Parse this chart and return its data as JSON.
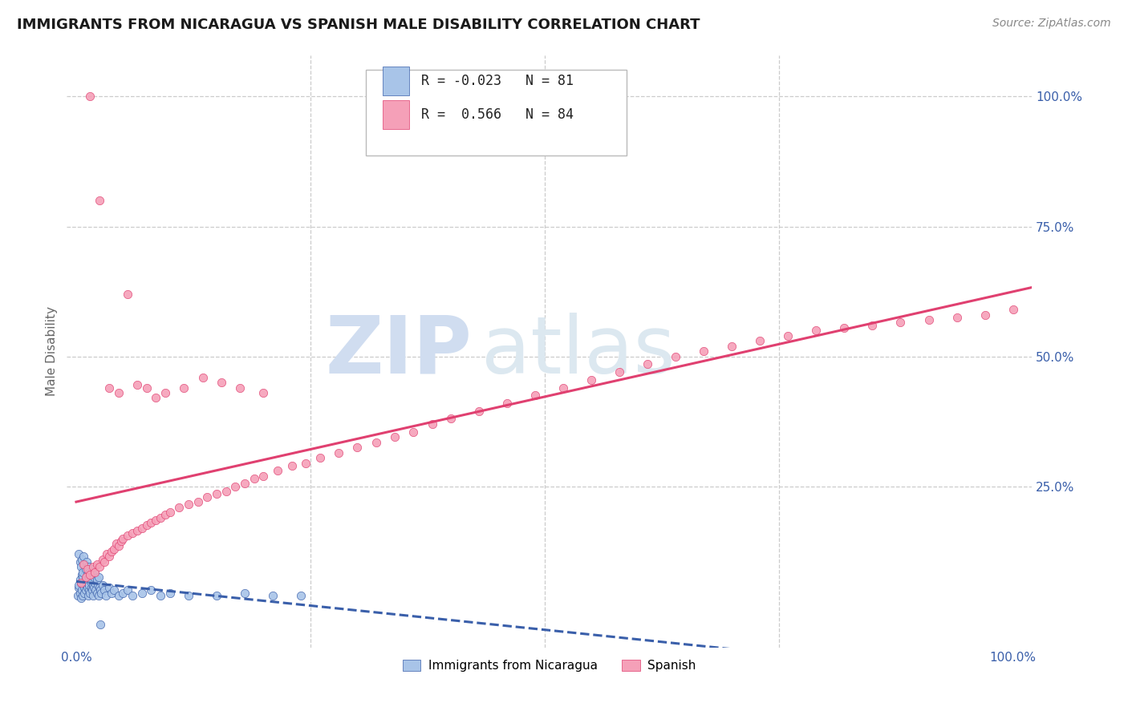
{
  "title": "IMMIGRANTS FROM NICARAGUA VS SPANISH MALE DISABILITY CORRELATION CHART",
  "source": "Source: ZipAtlas.com",
  "ylabel": "Male Disability",
  "legend_blue_r": "-0.023",
  "legend_blue_n": "81",
  "legend_pink_r": "0.566",
  "legend_pink_n": "84",
  "legend_blue_label": "Immigrants from Nicaragua",
  "legend_pink_label": "Spanish",
  "blue_color": "#a8c4e8",
  "pink_color": "#f5a0b8",
  "blue_line_color": "#3a5faa",
  "pink_line_color": "#e04070",
  "background_color": "#ffffff",
  "grid_color": "#cccccc",
  "blue_x": [
    0.002,
    0.003,
    0.003,
    0.004,
    0.004,
    0.005,
    0.005,
    0.006,
    0.006,
    0.007,
    0.007,
    0.008,
    0.008,
    0.009,
    0.009,
    0.01,
    0.01,
    0.011,
    0.011,
    0.012,
    0.012,
    0.013,
    0.013,
    0.014,
    0.014,
    0.015,
    0.015,
    0.016,
    0.016,
    0.017,
    0.018,
    0.018,
    0.019,
    0.02,
    0.021,
    0.022,
    0.023,
    0.024,
    0.025,
    0.026,
    0.027,
    0.028,
    0.03,
    0.032,
    0.035,
    0.038,
    0.04,
    0.045,
    0.05,
    0.055,
    0.06,
    0.07,
    0.08,
    0.09,
    0.1,
    0.12,
    0.15,
    0.18,
    0.21,
    0.24,
    0.003,
    0.004,
    0.005,
    0.006,
    0.007,
    0.008,
    0.009,
    0.01,
    0.011,
    0.012,
    0.013,
    0.014,
    0.015,
    0.016,
    0.017,
    0.018,
    0.019,
    0.02,
    0.022,
    0.024,
    0.026
  ],
  "blue_y": [
    0.04,
    0.055,
    0.06,
    0.045,
    0.07,
    0.035,
    0.065,
    0.05,
    0.08,
    0.04,
    0.075,
    0.06,
    0.09,
    0.055,
    0.045,
    0.07,
    0.05,
    0.06,
    0.075,
    0.055,
    0.065,
    0.04,
    0.08,
    0.05,
    0.06,
    0.07,
    0.045,
    0.055,
    0.065,
    0.05,
    0.06,
    0.04,
    0.055,
    0.065,
    0.05,
    0.045,
    0.06,
    0.04,
    0.055,
    0.05,
    0.045,
    0.06,
    0.05,
    0.04,
    0.055,
    0.045,
    0.05,
    0.04,
    0.045,
    0.05,
    0.04,
    0.045,
    0.05,
    0.04,
    0.045,
    0.04,
    0.04,
    0.045,
    0.04,
    0.04,
    0.12,
    0.105,
    0.095,
    0.11,
    0.085,
    0.115,
    0.1,
    0.09,
    0.105,
    0.08,
    0.095,
    0.075,
    0.085,
    0.07,
    0.09,
    0.08,
    0.075,
    0.085,
    0.07,
    0.075,
    -0.015
  ],
  "pink_x": [
    0.005,
    0.008,
    0.01,
    0.012,
    0.015,
    0.018,
    0.02,
    0.022,
    0.025,
    0.028,
    0.03,
    0.033,
    0.035,
    0.038,
    0.04,
    0.043,
    0.045,
    0.048,
    0.05,
    0.055,
    0.06,
    0.065,
    0.07,
    0.075,
    0.08,
    0.085,
    0.09,
    0.095,
    0.1,
    0.11,
    0.12,
    0.13,
    0.14,
    0.15,
    0.16,
    0.17,
    0.18,
    0.19,
    0.2,
    0.215,
    0.23,
    0.245,
    0.26,
    0.28,
    0.3,
    0.32,
    0.34,
    0.36,
    0.38,
    0.4,
    0.43,
    0.46,
    0.49,
    0.52,
    0.55,
    0.58,
    0.61,
    0.64,
    0.67,
    0.7,
    0.73,
    0.76,
    0.79,
    0.82,
    0.85,
    0.88,
    0.91,
    0.94,
    0.97,
    1.0,
    0.015,
    0.025,
    0.035,
    0.045,
    0.055,
    0.065,
    0.075,
    0.085,
    0.095,
    0.115,
    0.135,
    0.155,
    0.175,
    0.2
  ],
  "pink_y": [
    0.065,
    0.1,
    0.075,
    0.09,
    0.08,
    0.095,
    0.085,
    0.1,
    0.095,
    0.11,
    0.105,
    0.12,
    0.115,
    0.125,
    0.13,
    0.14,
    0.135,
    0.145,
    0.15,
    0.155,
    0.16,
    0.165,
    0.17,
    0.175,
    0.18,
    0.185,
    0.19,
    0.195,
    0.2,
    0.21,
    0.215,
    0.22,
    0.23,
    0.235,
    0.24,
    0.25,
    0.255,
    0.265,
    0.27,
    0.28,
    0.29,
    0.295,
    0.305,
    0.315,
    0.325,
    0.335,
    0.345,
    0.355,
    0.37,
    0.38,
    0.395,
    0.41,
    0.425,
    0.44,
    0.455,
    0.47,
    0.485,
    0.5,
    0.51,
    0.52,
    0.53,
    0.54,
    0.55,
    0.555,
    0.56,
    0.565,
    0.57,
    0.575,
    0.58,
    0.59,
    1.0,
    0.8,
    0.44,
    0.43,
    0.62,
    0.445,
    0.44,
    0.42,
    0.43,
    0.44,
    0.46,
    0.45,
    0.44,
    0.43
  ]
}
